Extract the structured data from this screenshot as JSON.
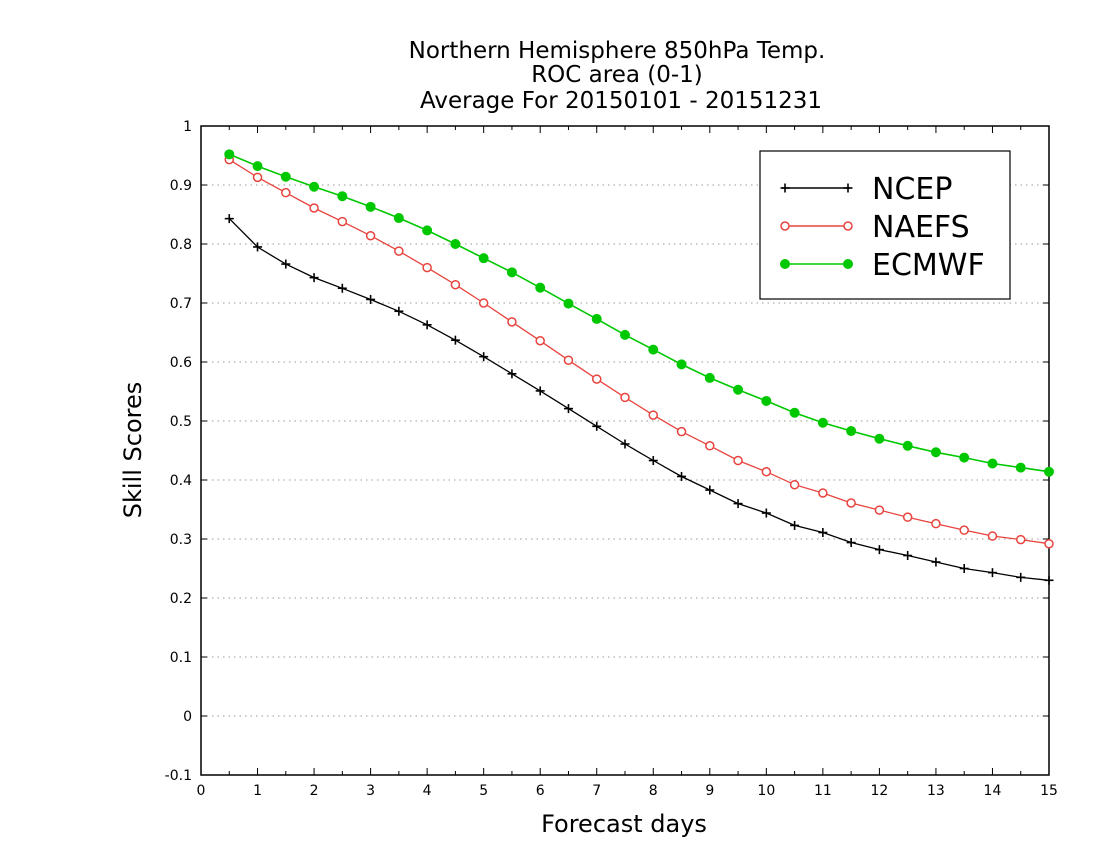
{
  "chart_data": {
    "type": "line",
    "title_lines": [
      "Northern Hemisphere 850hPa Temp.",
      "ROC area (0-1)",
      "Average For 20150101 - 20151231"
    ],
    "xlabel": "Forecast days",
    "ylabel": "Skill Scores",
    "xlim": [
      0,
      15
    ],
    "ylim": [
      -0.1,
      1
    ],
    "x_ticks": [
      0,
      1,
      2,
      3,
      4,
      5,
      6,
      7,
      8,
      9,
      10,
      11,
      12,
      13,
      14,
      15
    ],
    "y_ticks": [
      -0.1,
      0,
      0.1,
      0.2,
      0.3,
      0.4,
      0.5,
      0.6,
      0.7,
      0.8,
      0.9,
      1
    ],
    "x_tick_labels": [
      "0",
      "1",
      "2",
      "3",
      "4",
      "5",
      "6",
      "7",
      "8",
      "9",
      "10",
      "11",
      "12",
      "13",
      "14",
      "15"
    ],
    "y_tick_labels": [
      "-0.1",
      "0",
      "0.1",
      "0.2",
      "0.3",
      "0.4",
      "0.5",
      "0.6",
      "0.7",
      "0.8",
      "0.9",
      "1"
    ],
    "grid": "horizontal dotted",
    "legend_position": "top-right",
    "x": [
      0.5,
      1,
      1.5,
      2,
      2.5,
      3,
      3.5,
      4,
      4.5,
      5,
      5.5,
      6,
      6.5,
      7,
      7.5,
      8,
      8.5,
      9,
      9.5,
      10,
      10.5,
      11,
      11.5,
      12,
      12.5,
      13,
      13.5,
      14,
      14.5,
      15
    ],
    "series": [
      {
        "name": "NCEP",
        "color": "#000000",
        "marker": "plus",
        "values": [
          0.843,
          0.795,
          0.766,
          0.743,
          0.725,
          0.706,
          0.686,
          0.663,
          0.637,
          0.609,
          0.58,
          0.551,
          0.521,
          0.491,
          0.461,
          0.433,
          0.406,
          0.383,
          0.36,
          0.344,
          0.323,
          0.311,
          0.294,
          0.282,
          0.272,
          0.261,
          0.25,
          0.243,
          0.235,
          0.23
        ]
      },
      {
        "name": "NAEFS",
        "color": "#e8433e",
        "marker": "open-circle",
        "values": [
          0.943,
          0.913,
          0.887,
          0.861,
          0.838,
          0.814,
          0.788,
          0.76,
          0.731,
          0.7,
          0.668,
          0.636,
          0.603,
          0.571,
          0.54,
          0.51,
          0.482,
          0.458,
          0.433,
          0.414,
          0.392,
          0.378,
          0.361,
          0.349,
          0.337,
          0.326,
          0.315,
          0.305,
          0.299,
          0.292
        ]
      },
      {
        "name": "ECMWF",
        "color": "#00c800",
        "marker": "filled-circle",
        "values": [
          0.952,
          0.932,
          0.914,
          0.897,
          0.881,
          0.863,
          0.844,
          0.823,
          0.8,
          0.776,
          0.752,
          0.726,
          0.699,
          0.673,
          0.646,
          0.621,
          0.596,
          0.573,
          0.553,
          0.534,
          0.514,
          0.497,
          0.483,
          0.47,
          0.458,
          0.447,
          0.438,
          0.428,
          0.421,
          0.414
        ]
      }
    ]
  }
}
